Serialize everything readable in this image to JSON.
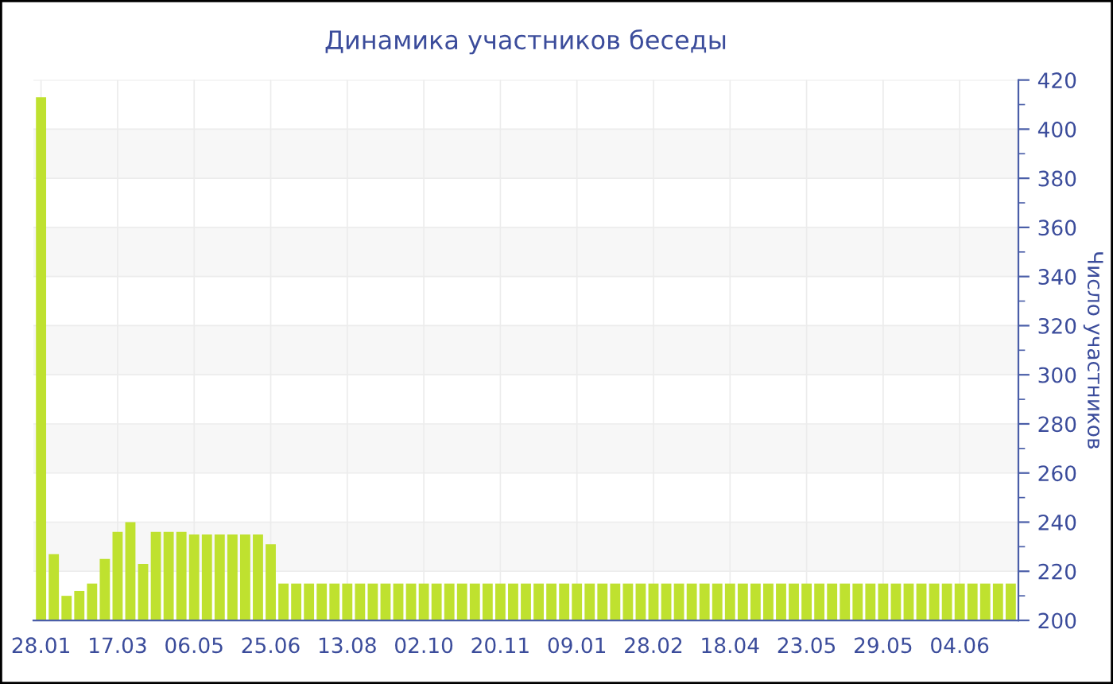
{
  "chart_data": {
    "type": "bar",
    "title": "Динамика участников беседы",
    "ylabel": "Число участников",
    "categories": [
      "28.01",
      null,
      null,
      null,
      null,
      null,
      "17.03",
      null,
      null,
      null,
      null,
      null,
      "06.05",
      null,
      null,
      null,
      null,
      null,
      "25.06",
      null,
      null,
      null,
      null,
      null,
      "13.08",
      null,
      null,
      null,
      null,
      null,
      "02.10",
      null,
      null,
      null,
      null,
      null,
      "20.11",
      null,
      null,
      null,
      null,
      null,
      "09.01",
      null,
      null,
      null,
      null,
      null,
      "28.02",
      null,
      null,
      null,
      null,
      null,
      "18.04",
      null,
      null,
      null,
      null,
      null,
      "23.05",
      null,
      null,
      null,
      null,
      null,
      "29.05",
      null,
      null,
      null,
      null,
      null,
      "04.06",
      null,
      null,
      null,
      null
    ],
    "values": [
      413,
      227,
      210,
      212,
      215,
      225,
      236,
      240,
      223,
      236,
      236,
      236,
      235,
      235,
      235,
      235,
      235,
      235,
      231,
      215,
      215,
      215,
      215,
      215,
      215,
      215,
      215,
      215,
      215,
      215,
      215,
      215,
      215,
      215,
      215,
      215,
      215,
      215,
      215,
      215,
      215,
      215,
      215,
      215,
      215,
      215,
      215,
      215,
      215,
      215,
      215,
      215,
      215,
      215,
      215,
      215,
      215,
      215,
      215,
      215,
      215,
      215,
      215,
      215,
      215,
      215,
      215,
      215,
      215,
      215,
      215,
      215,
      215,
      215,
      215,
      215,
      215
    ],
    "color": "#bfe12f",
    "ylim": [
      200,
      420
    ],
    "yticks": [
      200,
      220,
      240,
      260,
      280,
      300,
      320,
      340,
      360,
      380,
      400,
      420
    ],
    "grid": true
  }
}
